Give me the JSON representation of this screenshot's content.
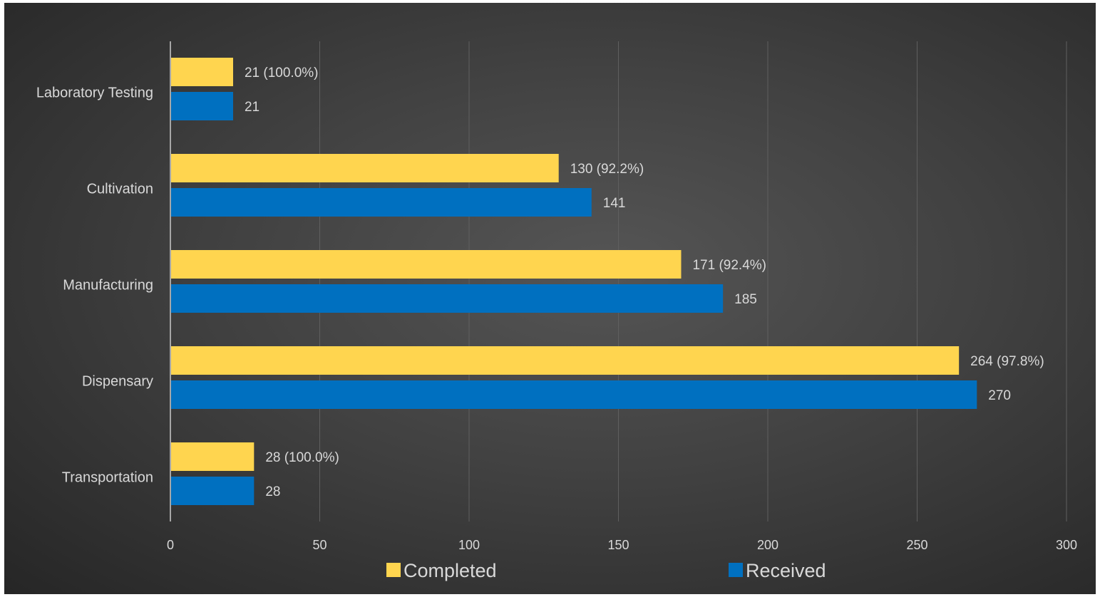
{
  "chart_data": {
    "type": "bar",
    "orientation": "horizontal",
    "categories": [
      "Laboratory Testing",
      "Cultivation",
      "Manufacturing",
      "Dispensary",
      "Transportation"
    ],
    "series": [
      {
        "name": "Completed",
        "color": "#ffd54f",
        "values": [
          21,
          130,
          171,
          264,
          28
        ],
        "labels": [
          "21 (100.0%)",
          "130 (92.2%)",
          "171 (92.4%)",
          "264 (97.8%)",
          "28 (100.0%)"
        ]
      },
      {
        "name": "Received",
        "color": "#0070c0",
        "values": [
          21,
          141,
          185,
          270,
          28
        ],
        "labels": [
          "21",
          "141",
          "185",
          "270",
          "28"
        ]
      }
    ],
    "xlim": [
      0,
      300
    ],
    "x_ticks": [
      0,
      50,
      100,
      150,
      200,
      250,
      300
    ],
    "grid": true,
    "legend": "bottom"
  }
}
